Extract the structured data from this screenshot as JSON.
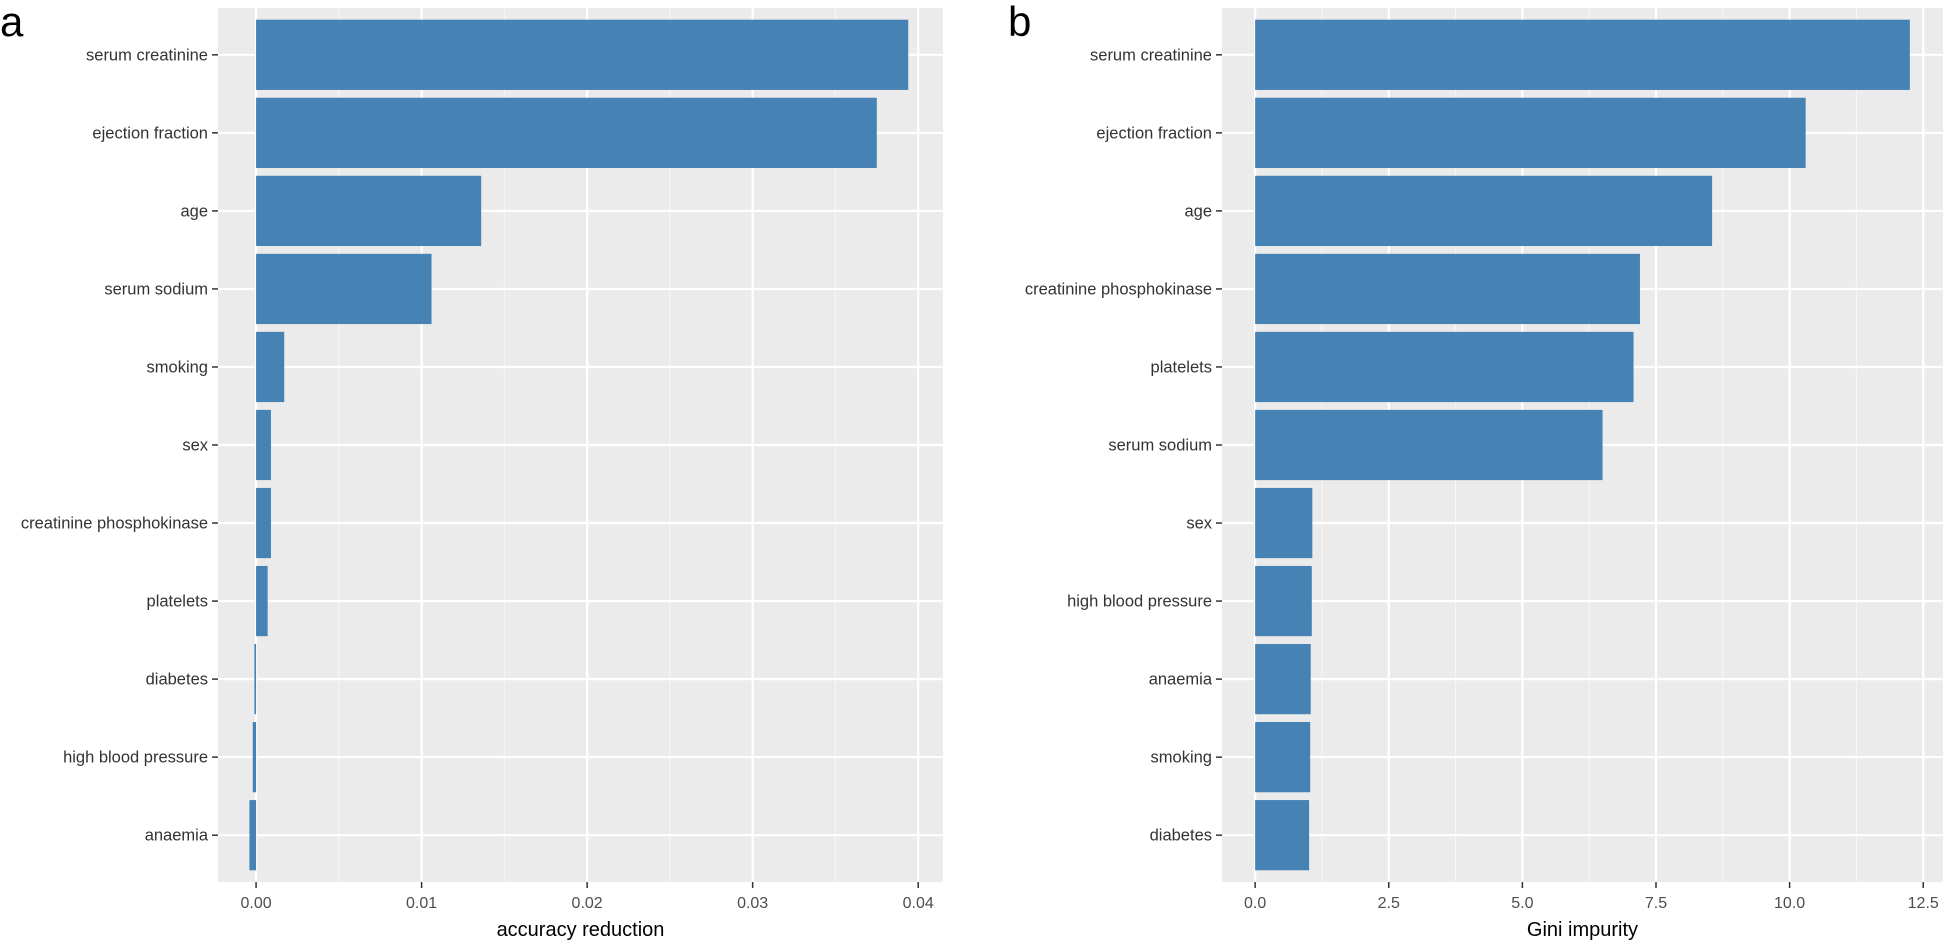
{
  "chart_data": [
    {
      "type": "bar",
      "orientation": "horizontal",
      "panel_label": "a",
      "xlabel": "accuracy reduction",
      "ylabel": "",
      "xlim": [
        -0.0023,
        0.0415
      ],
      "x_ticks": [
        0.0,
        0.01,
        0.02,
        0.03,
        0.04
      ],
      "x_tick_labels": [
        "0.00",
        "0.01",
        "0.02",
        "0.03",
        "0.04"
      ],
      "categories": [
        "serum creatinine",
        "ejection fraction",
        "age",
        "serum sodium",
        "smoking",
        "sex",
        "creatinine phosphokinase",
        "platelets",
        "diabetes",
        "high blood pressure",
        "anaemia"
      ],
      "values": [
        0.0394,
        0.0375,
        0.0136,
        0.0106,
        0.0017,
        0.0009,
        0.0009,
        0.0007,
        -0.0001,
        -0.0002,
        -0.0004
      ],
      "grid": true,
      "bar_color": "#4682b4",
      "panel_bg": "#ebebeb"
    },
    {
      "type": "bar",
      "orientation": "horizontal",
      "panel_label": "b",
      "xlabel": "Gini impurity",
      "ylabel": "",
      "xlim": [
        -0.62,
        12.87
      ],
      "x_ticks": [
        0,
        2.5,
        5,
        7.5,
        10,
        12.5
      ],
      "x_tick_labels": [
        "0.0",
        "2.5",
        "5.0",
        "7.5",
        "10.0",
        "12.5"
      ],
      "categories": [
        "serum creatinine",
        "ejection fraction",
        "age",
        "creatinine phosphokinase",
        "platelets",
        "serum sodium",
        "sex",
        "high blood pressure",
        "anaemia",
        "smoking",
        "diabetes"
      ],
      "values": [
        12.25,
        10.3,
        8.55,
        7.2,
        7.08,
        6.5,
        1.07,
        1.06,
        1.04,
        1.03,
        1.01
      ],
      "grid": true,
      "bar_color": "#4682b4",
      "panel_bg": "#ebebeb"
    }
  ]
}
